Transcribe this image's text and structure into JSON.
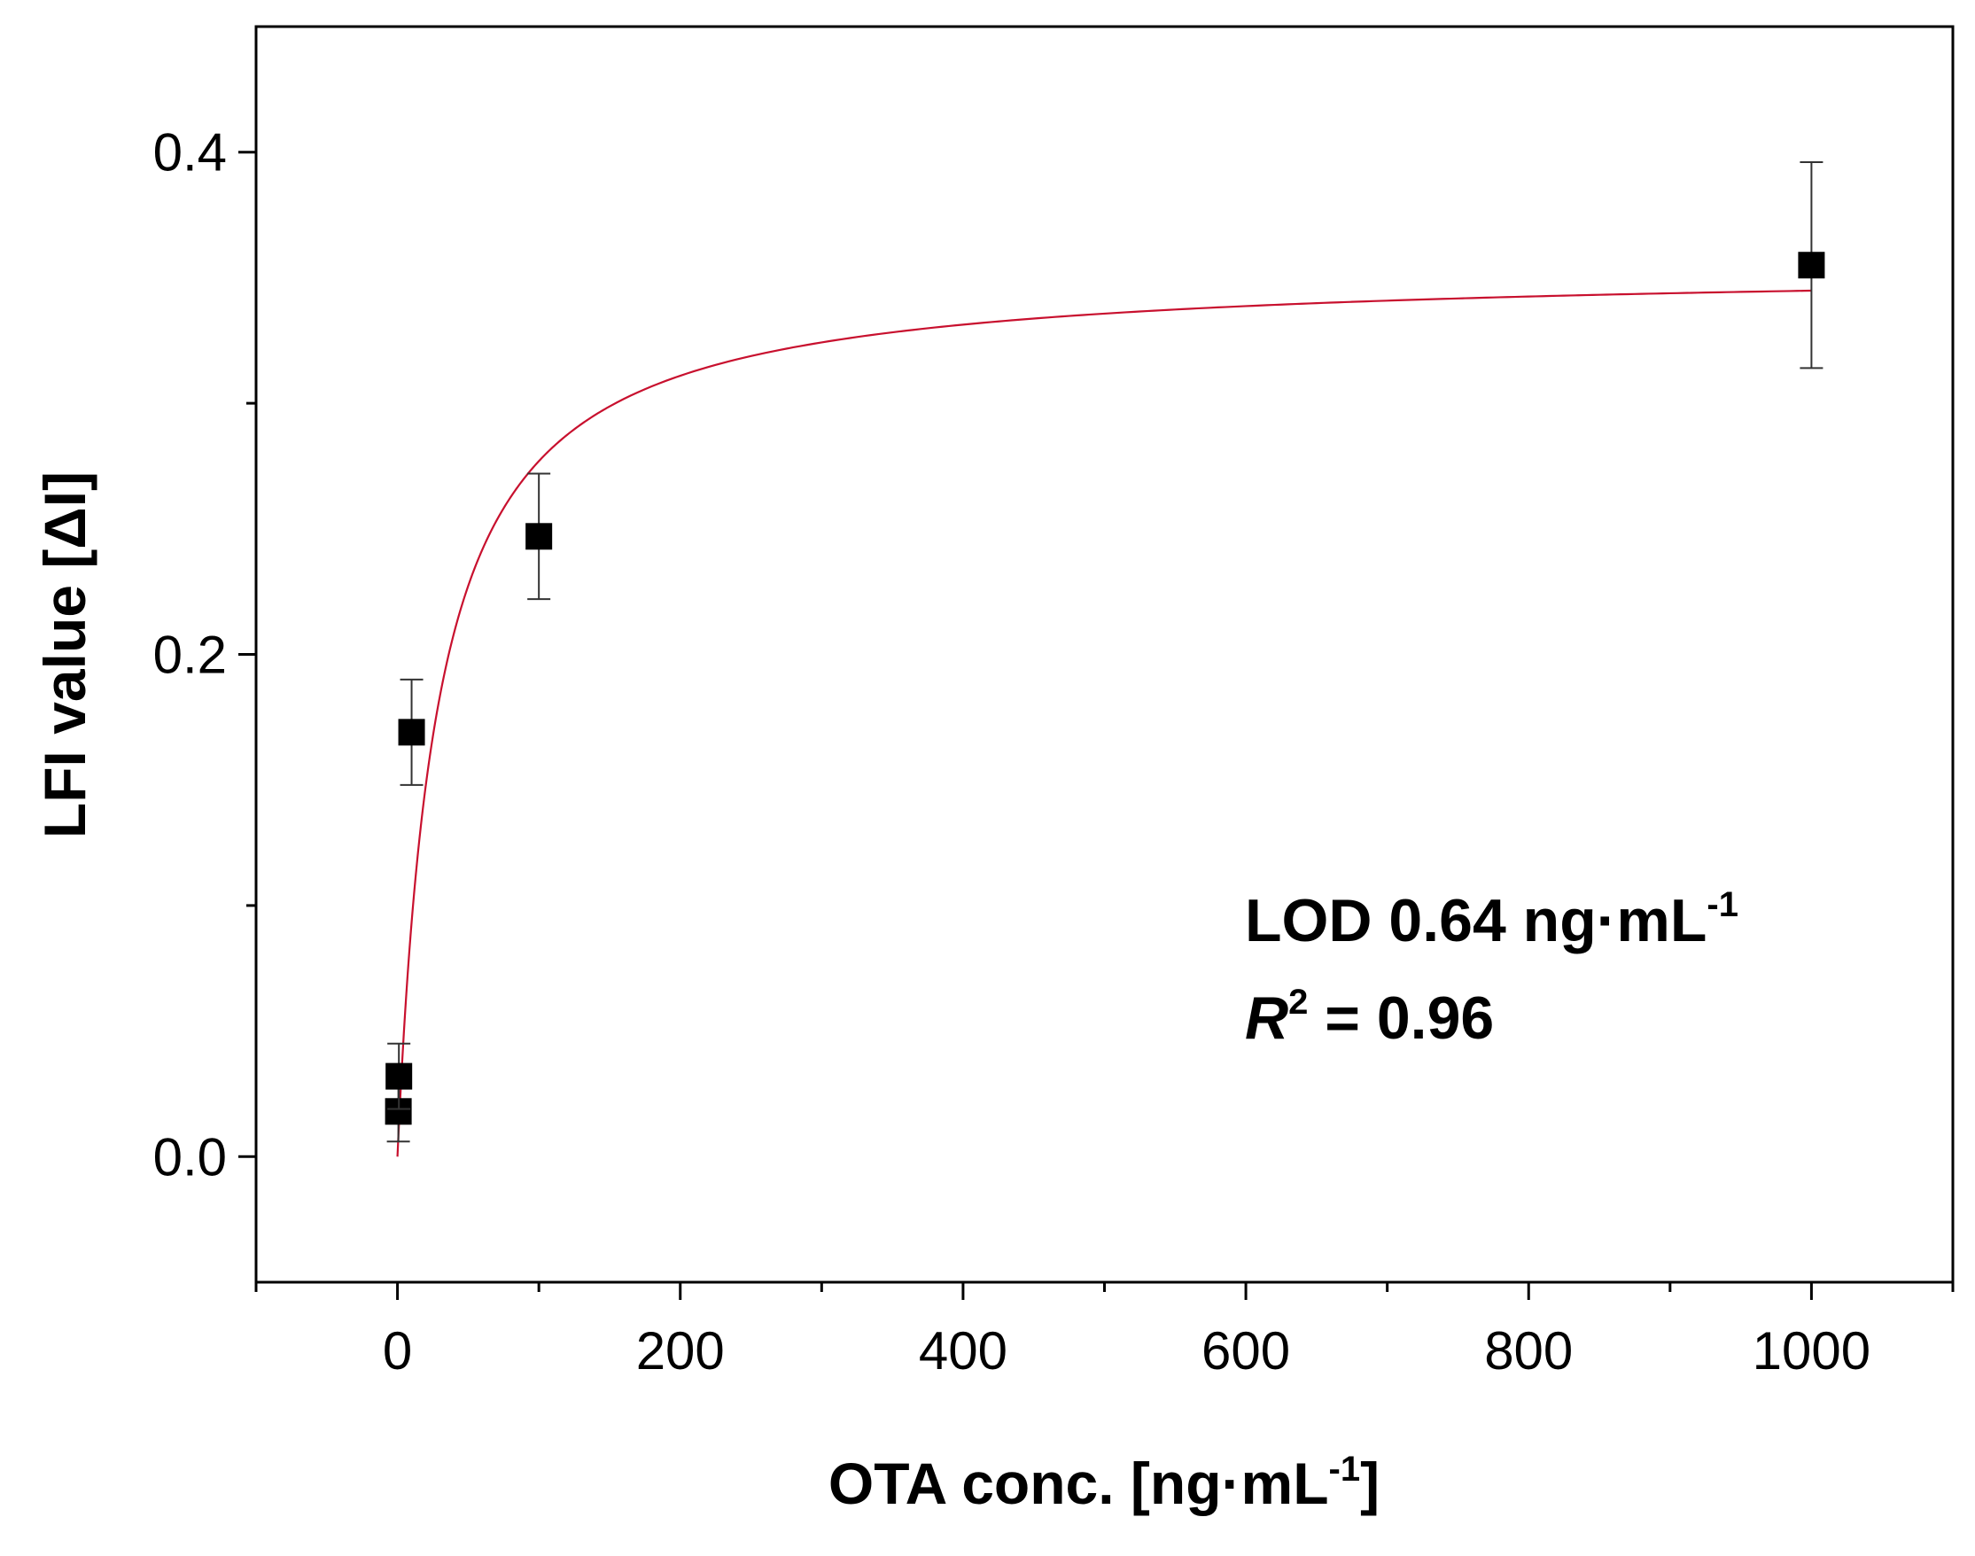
{
  "chart_data": {
    "type": "scatter",
    "title": "",
    "xlabel": {
      "main": "OTA conc. [ng·mL",
      "sup": "-1",
      "end": "]"
    },
    "ylabel": "LFI value [ΔI]",
    "xlim": [
      -100,
      1100
    ],
    "ylim": [
      -0.05,
      0.45
    ],
    "x_ticks": [
      0,
      200,
      400,
      600,
      800,
      1000
    ],
    "x_tick_labels": [
      "0",
      "200",
      "400",
      "600",
      "800",
      "1000"
    ],
    "x_minor_ticks": [
      -100,
      100,
      300,
      500,
      700,
      900,
      1100
    ],
    "y_ticks": [
      0.0,
      0.2,
      0.4
    ],
    "y_tick_labels": [
      "0.0",
      "0.2",
      "0.4"
    ],
    "y_minor_ticks": [
      0.1,
      0.3
    ],
    "series": [
      {
        "name": "measured",
        "marker": "square",
        "color": "#000000",
        "points": [
          {
            "x": 0.64,
            "y": 0.018,
            "err": 0.012
          },
          {
            "x": 1,
            "y": 0.032,
            "err": 0.013
          },
          {
            "x": 10,
            "y": 0.169,
            "err": 0.021
          },
          {
            "x": 100,
            "y": 0.247,
            "err": 0.025
          },
          {
            "x": 1000,
            "y": 0.355,
            "err": 0.041
          }
        ]
      },
      {
        "name": "fit",
        "type": "line",
        "color": "#c8102e",
        "model": "y = a*x/(b+x)",
        "params": {
          "a": 0.3545,
          "b": 28
        }
      }
    ],
    "annotations": {
      "lod": {
        "main": "LOD 0.64 ng·mL",
        "sup": "-1"
      },
      "r2": {
        "symbol": "R",
        "sup": "2",
        "rest": " = 0.96"
      }
    }
  }
}
